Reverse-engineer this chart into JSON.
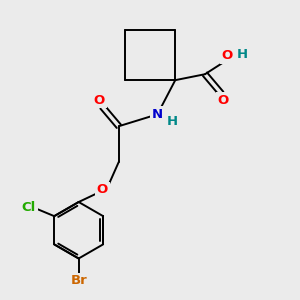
{
  "bg_color": "#ebebeb",
  "bond_color": "#000000",
  "atom_colors": {
    "O": "#ff0000",
    "N": "#0000cc",
    "Cl": "#22aa00",
    "Br": "#cc6600",
    "H": "#008888",
    "C": "#000000"
  },
  "font_size": 9.5,
  "lw": 1.4
}
